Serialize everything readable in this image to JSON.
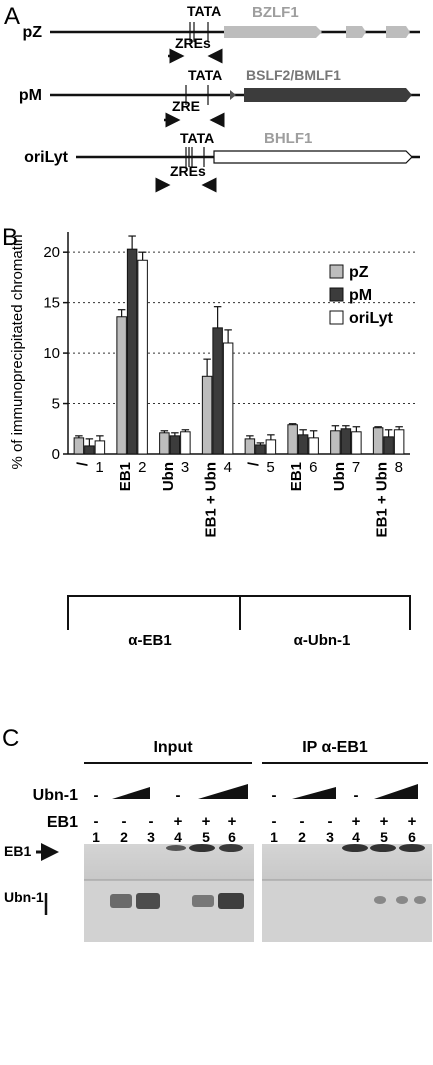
{
  "panelA": {
    "letter": "A",
    "constructs": [
      {
        "name": "pZ",
        "tata": "TATA",
        "zre": "ZREs",
        "gene": "BZLF1",
        "gene_color": "#bdbdbd"
      },
      {
        "name": "pM",
        "tata": "TATA",
        "zre": "ZRE",
        "gene": "BSLF2/BMLF1",
        "gene_color": "#3c3c3c"
      },
      {
        "name": "oriLyt",
        "tata": "TATA",
        "zre": "ZREs",
        "gene": "BHLF1",
        "gene_color": "#ffffff"
      }
    ]
  },
  "panelB": {
    "letter": "B",
    "group_labels": [
      "α-EB1",
      "α-Ubn-1"
    ]
  },
  "chart_data": {
    "type": "bar",
    "ylabel": "% of immunoprecipitated chromatin",
    "ylim": [
      0,
      22
    ],
    "yticks": [
      0,
      5,
      10,
      15,
      20
    ],
    "grid": "dotted horizontal at 5, 10, 15, 20",
    "legend_position": "top-right",
    "categories": [
      "/",
      "EB1",
      "Ubn",
      "EB1 + Ubn",
      "/",
      "EB1",
      "Ubn",
      "EB1 + Ubn"
    ],
    "category_numbers": [
      "1",
      "2",
      "3",
      "4",
      "5",
      "6",
      "7",
      "8"
    ],
    "series": [
      {
        "name": "pZ",
        "color": "#bdbdbd",
        "values": [
          1.6,
          13.6,
          2.1,
          7.7,
          1.5,
          2.9,
          2.3,
          2.6
        ],
        "errors": [
          0.2,
          0.7,
          0.2,
          1.7,
          0.3,
          0.1,
          0.5,
          0.1
        ]
      },
      {
        "name": "pM",
        "color": "#3c3c3c",
        "values": [
          0.8,
          20.3,
          1.8,
          12.5,
          0.9,
          1.9,
          2.5,
          1.7
        ],
        "errors": [
          0.7,
          1.3,
          0.3,
          2.1,
          0.2,
          0.5,
          0.3,
          0.7
        ]
      },
      {
        "name": "oriLyt",
        "color": "#ffffff",
        "values": [
          1.3,
          19.2,
          2.2,
          11.0,
          1.4,
          1.6,
          2.2,
          2.4
        ],
        "errors": [
          0.5,
          0.8,
          0.2,
          1.3,
          0.5,
          0.7,
          0.5,
          0.3
        ]
      }
    ]
  },
  "panelC": {
    "letter": "C",
    "input_label": "Input",
    "ip_label": "IP α-EB1",
    "row_ubn_label": "Ubn-1",
    "row_eb1_label": "EB1",
    "ubn_signs": [
      "-",
      "",
      "",
      "-",
      "",
      ""
    ],
    "eb1_signs": [
      "-",
      "-",
      "-",
      "+",
      "+",
      "+"
    ],
    "lane_numbers": [
      "1",
      "2",
      "3",
      "4",
      "5",
      "6"
    ],
    "blot_eb1_label": "EB1",
    "blot_ubn_label": "Ubn-1"
  }
}
